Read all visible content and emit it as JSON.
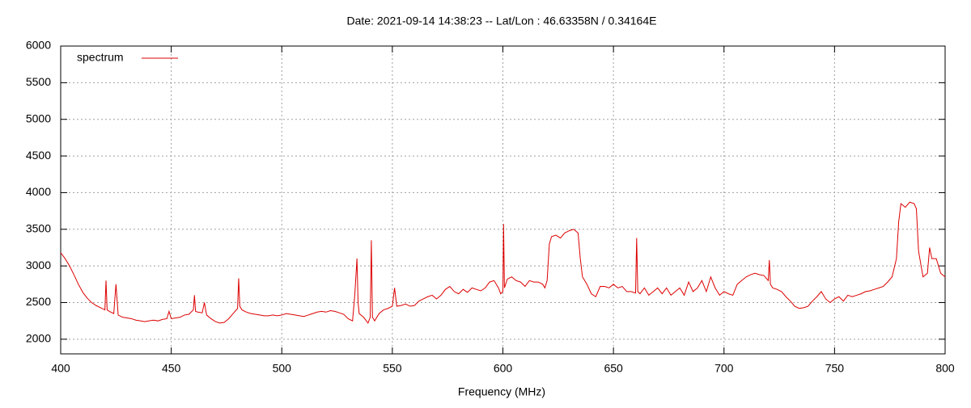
{
  "chart_data": {
    "type": "line",
    "title": "Date: 2021-09-14 14:38:23  --  Lat/Lon : 46.63358N / 0.34164E",
    "x_label": "Frequency (MHz)",
    "legend": "top left",
    "grid": true,
    "xlim": [
      400,
      800
    ],
    "xticks": [
      400,
      450,
      500,
      550,
      600,
      650,
      700,
      750,
      800
    ],
    "ylim": [
      1800,
      6000
    ],
    "yticks": [
      2000,
      2500,
      3000,
      3500,
      4000,
      4500,
      5000,
      5500,
      6000
    ],
    "x": [
      400,
      402,
      404,
      406,
      408,
      410,
      412,
      414,
      416,
      418,
      420,
      420.5,
      421,
      422,
      424,
      425,
      426,
      428,
      430,
      432,
      434,
      436,
      438,
      440,
      442,
      444,
      446,
      448,
      449,
      450,
      452,
      454,
      456,
      458,
      460,
      460.5,
      461,
      462,
      464,
      465,
      466,
      468,
      470,
      472,
      474,
      476,
      478,
      480,
      480.5,
      481,
      482,
      484,
      486,
      488,
      490,
      492,
      494,
      496,
      498,
      500,
      502,
      504,
      506,
      508,
      510,
      512,
      514,
      516,
      518,
      520,
      522,
      524,
      526,
      528,
      530,
      532,
      533,
      534,
      534.5,
      535,
      537,
      539,
      540,
      540.5,
      541,
      542,
      544,
      546,
      548,
      550,
      551,
      552,
      554,
      556,
      558,
      560,
      562,
      564,
      566,
      568,
      570,
      572,
      574,
      576,
      578,
      580,
      582,
      584,
      586,
      588,
      590,
      592,
      594,
      596,
      598,
      599,
      600,
      600.3,
      600.7,
      602,
      604,
      606,
      608,
      610,
      612,
      614,
      616,
      618,
      619,
      620,
      621,
      622,
      624,
      626,
      628,
      630,
      632,
      634,
      635,
      636,
      638,
      640,
      642,
      644,
      646,
      648,
      650,
      652,
      654,
      656,
      658,
      660,
      660.5,
      661,
      662,
      664,
      666,
      668,
      670,
      672,
      674,
      676,
      678,
      680,
      682,
      684,
      686,
      688,
      690,
      692,
      694,
      696,
      698,
      700,
      702,
      704,
      706,
      708,
      710,
      712,
      714,
      716,
      718,
      720,
      720.5,
      721,
      722,
      724,
      726,
      728,
      730,
      732,
      734,
      736,
      738,
      740,
      742,
      744,
      746,
      748,
      750,
      752,
      754,
      756,
      758,
      760,
      762,
      764,
      766,
      768,
      770,
      772,
      774,
      776,
      778,
      779,
      780,
      782,
      784,
      786,
      787,
      788,
      790,
      792,
      793,
      794,
      796,
      798,
      800
    ],
    "series": [
      {
        "name": "spectrum",
        "color": "#dd0000",
        "values": [
          3180,
          3100,
          3000,
          2880,
          2750,
          2640,
          2560,
          2500,
          2460,
          2430,
          2400,
          2800,
          2400,
          2380,
          2350,
          2750,
          2330,
          2300,
          2290,
          2280,
          2260,
          2250,
          2240,
          2250,
          2260,
          2250,
          2270,
          2280,
          2380,
          2280,
          2290,
          2300,
          2330,
          2340,
          2400,
          2600,
          2380,
          2370,
          2360,
          2500,
          2330,
          2280,
          2240,
          2220,
          2230,
          2280,
          2350,
          2420,
          2830,
          2450,
          2400,
          2370,
          2350,
          2340,
          2330,
          2320,
          2320,
          2330,
          2320,
          2330,
          2350,
          2340,
          2330,
          2320,
          2310,
          2330,
          2350,
          2370,
          2380,
          2370,
          2390,
          2380,
          2360,
          2340,
          2280,
          2250,
          2600,
          3100,
          2500,
          2350,
          2300,
          2220,
          2300,
          3350,
          2300,
          2250,
          2350,
          2400,
          2420,
          2450,
          2700,
          2450,
          2460,
          2480,
          2450,
          2460,
          2520,
          2550,
          2580,
          2600,
          2550,
          2600,
          2680,
          2720,
          2650,
          2620,
          2680,
          2640,
          2700,
          2680,
          2660,
          2700,
          2780,
          2800,
          2700,
          2620,
          2650,
          3570,
          2700,
          2820,
          2850,
          2800,
          2780,
          2720,
          2800,
          2780,
          2780,
          2750,
          2700,
          2800,
          3300,
          3400,
          3420,
          3380,
          3450,
          3480,
          3500,
          3450,
          3100,
          2850,
          2750,
          2620,
          2580,
          2720,
          2720,
          2700,
          2750,
          2700,
          2720,
          2650,
          2650,
          2630,
          3380,
          2650,
          2620,
          2700,
          2600,
          2650,
          2700,
          2620,
          2700,
          2600,
          2650,
          2700,
          2600,
          2780,
          2650,
          2700,
          2800,
          2650,
          2850,
          2700,
          2600,
          2650,
          2620,
          2600,
          2750,
          2800,
          2850,
          2880,
          2900,
          2880,
          2870,
          2800,
          3080,
          2750,
          2700,
          2680,
          2650,
          2580,
          2520,
          2450,
          2420,
          2430,
          2450,
          2520,
          2580,
          2650,
          2550,
          2500,
          2550,
          2580,
          2520,
          2600,
          2580,
          2600,
          2620,
          2650,
          2660,
          2680,
          2700,
          2720,
          2780,
          2850,
          3100,
          3600,
          3850,
          3800,
          3870,
          3850,
          3780,
          3200,
          2850,
          2900,
          3250,
          3100,
          3100,
          2900,
          2850
        ]
      }
    ]
  }
}
